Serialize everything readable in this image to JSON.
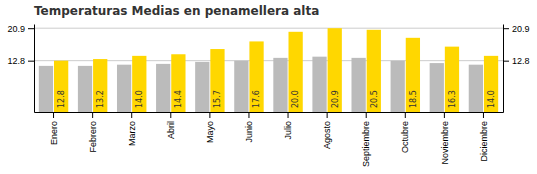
{
  "chart_data": {
    "type": "bar",
    "title": "Temperaturas Medias en penamellera alta",
    "categories": [
      "Enero",
      "Febrero",
      "Marzo",
      "Abril",
      "Mayo",
      "Junio",
      "Julio",
      "Agosto",
      "Septiembre",
      "Octubre",
      "Noviembre",
      "Diciembre"
    ],
    "series": [
      {
        "color": "#BBBBBB",
        "values": [
          11.5,
          11.5,
          11.8,
          12.0,
          12.5,
          12.8,
          13.5,
          13.8,
          13.5,
          12.8,
          12.2,
          11.8
        ]
      },
      {
        "color": "#FFD700",
        "values": [
          12.8,
          13.2,
          14.0,
          14.4,
          15.7,
          17.6,
          20.0,
          20.9,
          20.5,
          18.5,
          16.3,
          14.0
        ],
        "value_labels": [
          "12.8",
          "13.2",
          "14.0",
          "14.4",
          "15.7",
          "17.6",
          "20.0",
          "20.9",
          "20.5",
          "18.5",
          "16.3",
          "14.0"
        ],
        "data_labels": true
      }
    ],
    "ylim": [
      0,
      21.945
    ],
    "yticks": [
      12.8,
      20.9
    ],
    "grid": true
  }
}
